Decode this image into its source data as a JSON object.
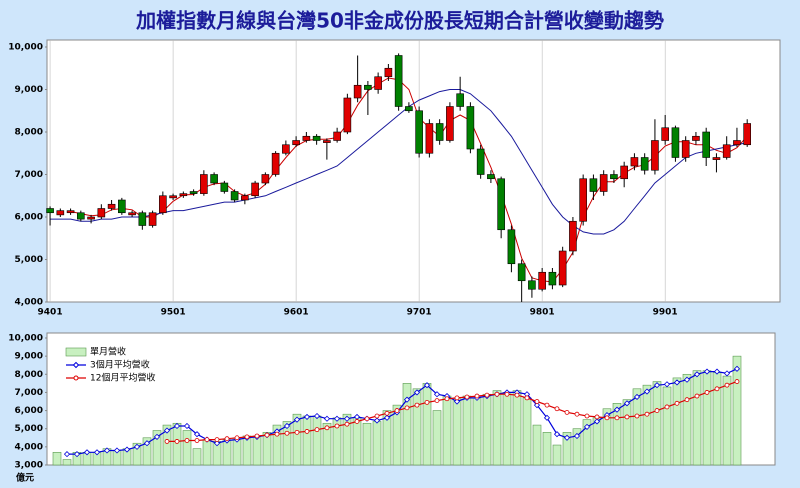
{
  "chart_data": [
    {
      "type": "candlestick",
      "title": "加權指數月線與台灣50非金成份股長短期合計營收變動趨勢",
      "categories": [
        "9401",
        null,
        null,
        null,
        null,
        null,
        null,
        null,
        null,
        null,
        null,
        null,
        "9501",
        null,
        null,
        null,
        null,
        null,
        null,
        null,
        null,
        null,
        null,
        null,
        "9601",
        null,
        null,
        null,
        null,
        null,
        null,
        null,
        null,
        null,
        null,
        null,
        "9701",
        null,
        null,
        null,
        null,
        null,
        null,
        null,
        null,
        null,
        null,
        null,
        "9801",
        null,
        null,
        null,
        null,
        null,
        null,
        null,
        null,
        null,
        null,
        null,
        "9901",
        null,
        null,
        null,
        null,
        null,
        null,
        null,
        null
      ],
      "open": [
        6200,
        6050,
        6100,
        6100,
        5950,
        6000,
        6200,
        6400,
        6050,
        6100,
        5800,
        6100,
        6450,
        6500,
        6600,
        6550,
        7000,
        6800,
        6600,
        6400,
        6500,
        6800,
        7000,
        7500,
        7700,
        7800,
        7900,
        7750,
        7800,
        8000,
        8800,
        9100,
        9000,
        9300,
        9800,
        8600,
        8500,
        7500,
        8200,
        7800,
        8900,
        8600,
        7600,
        7000,
        6900,
        5700,
        4900,
        4500,
        4300,
        4700,
        4400,
        5200,
        5900,
        6900,
        6600,
        7000,
        6900,
        7200,
        7400,
        7100,
        7800,
        8100,
        7400,
        7800,
        8000,
        7350,
        7400,
        7700,
        7700
      ],
      "high": [
        6250,
        6200,
        6200,
        6150,
        6050,
        6300,
        6400,
        6450,
        6150,
        6150,
        6150,
        6600,
        6550,
        6600,
        6650,
        7100,
        7050,
        6850,
        6650,
        6550,
        6850,
        7050,
        7550,
        7800,
        7900,
        8000,
        7950,
        7850,
        8100,
        8900,
        9800,
        9200,
        9400,
        9600,
        9850,
        8700,
        8600,
        8300,
        8300,
        8700,
        9300,
        8700,
        7700,
        7100,
        6950,
        5800,
        5000,
        4600,
        4800,
        4800,
        5300,
        6000,
        7000,
        7000,
        7100,
        7100,
        7300,
        7500,
        7500,
        8300,
        8400,
        8150,
        7900,
        8000,
        8100,
        7500,
        7900,
        8100,
        8300
      ],
      "low": [
        5800,
        6000,
        6050,
        5900,
        5850,
        5950,
        6150,
        6050,
        6000,
        5700,
        5750,
        6050,
        6400,
        6450,
        6500,
        6500,
        6750,
        6550,
        6350,
        6300,
        6450,
        6750,
        6950,
        7450,
        7650,
        7750,
        7700,
        7350,
        7750,
        7950,
        8700,
        8400,
        8900,
        9200,
        8500,
        8450,
        7400,
        7400,
        7700,
        7750,
        8500,
        7500,
        6900,
        6800,
        5500,
        4700,
        4000,
        4100,
        4250,
        4300,
        4350,
        5100,
        5800,
        6400,
        6500,
        6800,
        6700,
        7100,
        7000,
        7000,
        7700,
        7300,
        7300,
        7700,
        7200,
        7050,
        7350,
        7650,
        7650
      ],
      "close": [
        6100,
        6150,
        6150,
        5950,
        6000,
        6200,
        6300,
        6100,
        6100,
        5800,
        6100,
        6500,
        6500,
        6550,
        6550,
        7000,
        6800,
        6600,
        6400,
        6500,
        6800,
        7000,
        7500,
        7700,
        7800,
        7900,
        7800,
        7800,
        8000,
        8800,
        9100,
        9000,
        9300,
        9500,
        8600,
        8500,
        7500,
        8200,
        7800,
        8600,
        8600,
        7600,
        7000,
        6900,
        5700,
        4900,
        4500,
        4300,
        4700,
        4400,
        5200,
        5900,
        6900,
        6600,
        7000,
        6900,
        7200,
        7400,
        7100,
        7800,
        8100,
        7400,
        7800,
        7900,
        7400,
        7400,
        7700,
        7800,
        8200
      ],
      "up_color": "#e00000",
      "down_color": "#008000",
      "lines": [
        {
          "color": "#cc0000",
          "values": [
            null,
            null,
            6130,
            6080,
            6030,
            6050,
            6170,
            6200,
            6170,
            6000,
            6000,
            6130,
            6370,
            6520,
            6530,
            6700,
            6780,
            6800,
            6600,
            6500,
            6570,
            6770,
            7100,
            7400,
            7670,
            7800,
            7830,
            7830,
            7870,
            8200,
            8630,
            8970,
            9130,
            9270,
            9230,
            9000,
            8330,
            8100,
            7900,
            8270,
            8400,
            8270,
            7730,
            7170,
            6530,
            5830,
            5030,
            4570,
            4500,
            4470,
            4770,
            5170,
            6000,
            6470,
            6830,
            6830,
            7030,
            7170,
            7230,
            7430,
            7670,
            7770,
            7770,
            7700,
            7700,
            7570,
            7500,
            7630,
            7900
          ]
        },
        {
          "color": "#1a1a9c",
          "values": [
            5950,
            5950,
            5950,
            5900,
            5900,
            5950,
            5950,
            6000,
            6000,
            6000,
            6050,
            6100,
            6150,
            6150,
            6200,
            6250,
            6300,
            6350,
            6350,
            6400,
            6450,
            6500,
            6600,
            6700,
            6800,
            6900,
            7000,
            7100,
            7200,
            7400,
            7600,
            7800,
            8000,
            8200,
            8400,
            8600,
            8750,
            8850,
            8950,
            9000,
            9000,
            8900,
            8700,
            8500,
            8200,
            7900,
            7500,
            7100,
            6700,
            6300,
            6000,
            5800,
            5650,
            5600,
            5600,
            5700,
            5900,
            6200,
            6500,
            6800,
            7000,
            7200,
            7400,
            7500,
            7550,
            7600,
            7650,
            7700,
            7750
          ]
        }
      ],
      "ylim": [
        4000,
        10000
      ],
      "yticks": [
        {
          "value": 4000,
          "label": "4,000"
        },
        {
          "value": 5000,
          "label": "5,000"
        },
        {
          "value": 6000,
          "label": "6,000"
        },
        {
          "value": 7000,
          "label": "7,000"
        },
        {
          "value": 8000,
          "label": "8,000"
        },
        {
          "value": 9000,
          "label": "9,000"
        },
        {
          "value": 10000,
          "label": "10,000"
        }
      ],
      "grid": true
    },
    {
      "type": "bar",
      "y_unit_label": "億元",
      "legend": "upper left",
      "series": [
        {
          "name": "單月營收",
          "type": "bar",
          "color": "#c8f0c0",
          "values": [
            3700,
            3300,
            3700,
            3700,
            3700,
            3900,
            3800,
            3900,
            4200,
            4500,
            4900,
            5200,
            5300,
            4900,
            3900,
            4400,
            4300,
            4400,
            4500,
            4600,
            4600,
            4800,
            5200,
            5400,
            5800,
            5700,
            5700,
            5300,
            5600,
            5800,
            5600,
            5300,
            5400,
            6000,
            6300,
            7500,
            7200,
            7500,
            6000,
            6800,
            6700,
            6800,
            6700,
            6900,
            7100,
            7000,
            7100,
            6700,
            5200,
            4800,
            4100,
            4800,
            5000,
            5500,
            5600,
            6100,
            6400,
            6600,
            7200,
            7400,
            7600,
            7300,
            7800,
            8000,
            8200,
            8200,
            8100,
            7900,
            9000
          ]
        },
        {
          "name": "3個月平均營收",
          "type": "line",
          "marker": "diamond",
          "color": "#0000dd",
          "values": [
            null,
            3600,
            3600,
            3700,
            3700,
            3800,
            3800,
            3850,
            4000,
            4200,
            4550,
            4900,
            5150,
            5150,
            4700,
            4400,
            4200,
            4350,
            4400,
            4500,
            4550,
            4650,
            4850,
            5150,
            5500,
            5650,
            5700,
            5550,
            5550,
            5550,
            5650,
            5550,
            5450,
            5600,
            5900,
            6600,
            7000,
            7400,
            6900,
            6800,
            6500,
            6700,
            6700,
            6800,
            6900,
            7000,
            7000,
            6900,
            6300,
            5600,
            4700,
            4500,
            4600,
            5100,
            5400,
            5750,
            6050,
            6400,
            6750,
            7050,
            7400,
            7450,
            7550,
            7700,
            8000,
            8150,
            8150,
            8050,
            8300
          ]
        },
        {
          "name": "12個月平均營收",
          "type": "line",
          "marker": "circle",
          "color": "#dd0000",
          "values": [
            null,
            null,
            null,
            null,
            null,
            null,
            null,
            null,
            null,
            null,
            null,
            4300,
            4300,
            4350,
            4350,
            4400,
            4400,
            4450,
            4500,
            4550,
            4600,
            4650,
            4700,
            4750,
            4800,
            4850,
            4950,
            5050,
            5150,
            5250,
            5400,
            5550,
            5700,
            5850,
            6000,
            6150,
            6300,
            6450,
            6550,
            6650,
            6700,
            6750,
            6800,
            6850,
            6900,
            6900,
            6850,
            6700,
            6500,
            6300,
            6100,
            5900,
            5800,
            5700,
            5650,
            5600,
            5600,
            5650,
            5700,
            5800,
            6000,
            6200,
            6400,
            6600,
            6800,
            7000,
            7200,
            7400,
            7600
          ]
        }
      ],
      "ylim": [
        3000,
        10000
      ],
      "yticks": [
        {
          "value": 3000,
          "label": "3,000"
        },
        {
          "value": 4000,
          "label": "4,000"
        },
        {
          "value": 5000,
          "label": "5,000"
        },
        {
          "value": 6000,
          "label": "6,000"
        },
        {
          "value": 7000,
          "label": "7,000"
        },
        {
          "value": 8000,
          "label": "8,000"
        },
        {
          "value": 9000,
          "label": "9,000"
        },
        {
          "value": 10000,
          "label": "10,000"
        }
      ]
    }
  ]
}
